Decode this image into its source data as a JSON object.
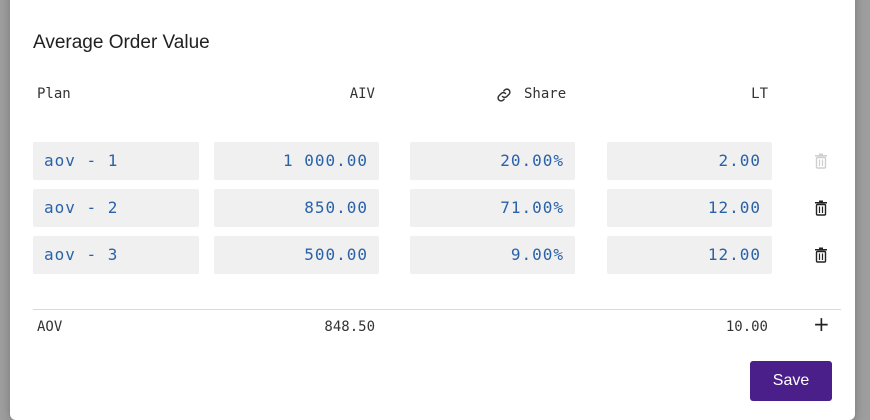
{
  "dialog": {
    "title": "Average Order Value",
    "close_icon": "close-icon",
    "save_label": "Save"
  },
  "table": {
    "headers": {
      "plan": "Plan",
      "aiv": "AIV",
      "share": "Share",
      "share_icon": "link-icon",
      "lt": "LT"
    },
    "rows": [
      {
        "plan": "aov - 1",
        "aiv": "1 000.00",
        "share": "20.00%",
        "lt": "2.00",
        "delete_enabled": false
      },
      {
        "plan": "aov - 2",
        "aiv": "850.00",
        "share": "71.00%",
        "lt": "12.00",
        "delete_enabled": true
      },
      {
        "plan": "aov - 3",
        "aiv": "500.00",
        "share": "9.00%",
        "lt": "12.00",
        "delete_enabled": true
      }
    ],
    "footer": {
      "label": "AOV",
      "aiv": "848.50",
      "lt": "10.00",
      "add_icon": "plus-icon"
    }
  },
  "colors": {
    "accent": "#4a1f8a",
    "value_text": "#2a62a8",
    "field_bg": "#f0f0f0",
    "backdrop": "#9e9e9e"
  }
}
